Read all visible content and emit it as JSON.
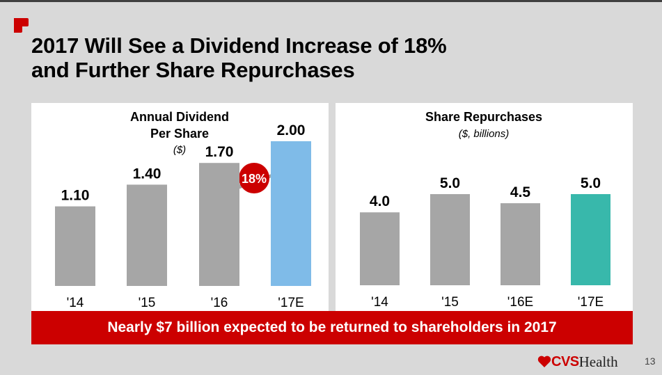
{
  "slide": {
    "title_line1": "2017 Will See a Dividend Increase of 18%",
    "title_line2": "and Further Share Repurchases",
    "banner": "Nearly $7 billion expected to be returned to shareholders in 2017",
    "brand_cvs": "CVS",
    "brand_health": "Health",
    "page_number": "13",
    "colors": {
      "background": "#d9d9d9",
      "brand_red": "#cc0000",
      "bar_gray": "#a6a6a6",
      "dividend_highlight": "#7fbbe8",
      "repurchase_highlight": "#38b8ab",
      "arrow_gray": "#a6a6a6"
    }
  },
  "chart_data": [
    {
      "type": "bar",
      "title": "Annual Dividend",
      "title_line2": "Per Share",
      "subtitle": "($)",
      "categories": [
        "'14",
        "'15",
        "'16",
        "'17E"
      ],
      "values": [
        1.1,
        1.4,
        1.7,
        2.0
      ],
      "labels": [
        "1.10",
        "1.40",
        "1.70",
        "2.00"
      ],
      "highlight_index": 3,
      "annotation": "18%",
      "xlabel": "",
      "ylabel": "",
      "ylim": [
        0,
        2.5
      ],
      "grid": false
    },
    {
      "type": "bar",
      "title": "Share Repurchases",
      "subtitle": "($, billions)",
      "categories": [
        "'14",
        "'15",
        "'16E",
        "'17E"
      ],
      "values": [
        4.0,
        5.0,
        4.5,
        5.0
      ],
      "labels": [
        "4.0",
        "5.0",
        "4.5",
        "5.0"
      ],
      "highlight_index": 3,
      "xlabel": "",
      "ylabel": "",
      "ylim": [
        0,
        6.5
      ],
      "grid": false
    }
  ]
}
